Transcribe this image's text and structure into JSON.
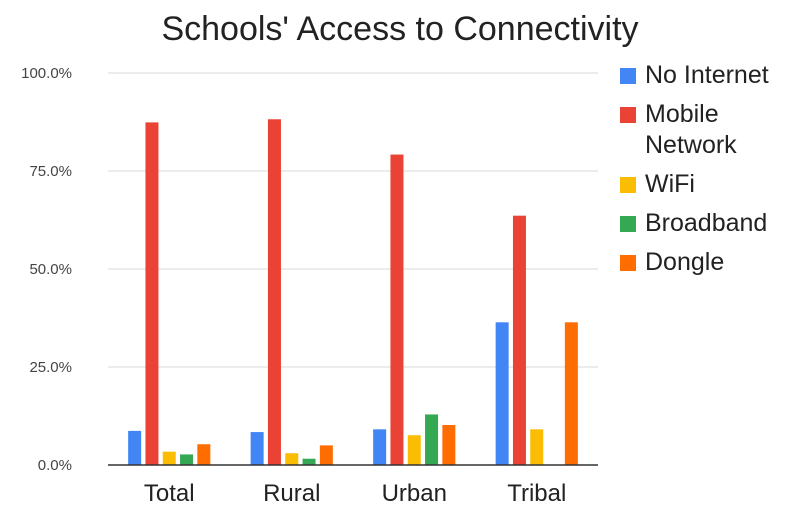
{
  "chart_data": {
    "type": "bar",
    "title": "Schools' Access to Connectivity",
    "xlabel": "",
    "ylabel": "",
    "categories": [
      "Total",
      "Rural",
      "Urban",
      "Tribal"
    ],
    "ylim": [
      0,
      100
    ],
    "yticks": [
      {
        "value": 0,
        "label": "0.0%"
      },
      {
        "value": 25,
        "label": "25.0%"
      },
      {
        "value": 50,
        "label": "50.0%"
      },
      {
        "value": 75,
        "label": "75.0%"
      },
      {
        "value": 100,
        "label": "100.0%"
      }
    ],
    "grid": true,
    "legend_position": "right",
    "series": [
      {
        "name": "No Internet",
        "color": "#4285F4",
        "values": [
          8.7,
          8.4,
          9.1,
          36.4
        ]
      },
      {
        "name": "Mobile Network",
        "color": "#EA4335",
        "values": [
          87.4,
          88.2,
          79.2,
          63.6
        ]
      },
      {
        "name": "WiFi",
        "color": "#FBBC04",
        "values": [
          3.4,
          3.0,
          7.6,
          9.1
        ]
      },
      {
        "name": "Broadband",
        "color": "#34A853",
        "values": [
          2.7,
          1.6,
          12.9,
          0
        ]
      },
      {
        "name": "Dongle",
        "color": "#FF6D01",
        "values": [
          5.3,
          5.0,
          10.2,
          36.4
        ]
      }
    ]
  },
  "legend_lines": [
    [
      "No Internet"
    ],
    [
      "Mobile",
      "Network"
    ],
    [
      "WiFi"
    ],
    [
      "Broadband"
    ],
    [
      "Dongle"
    ]
  ]
}
